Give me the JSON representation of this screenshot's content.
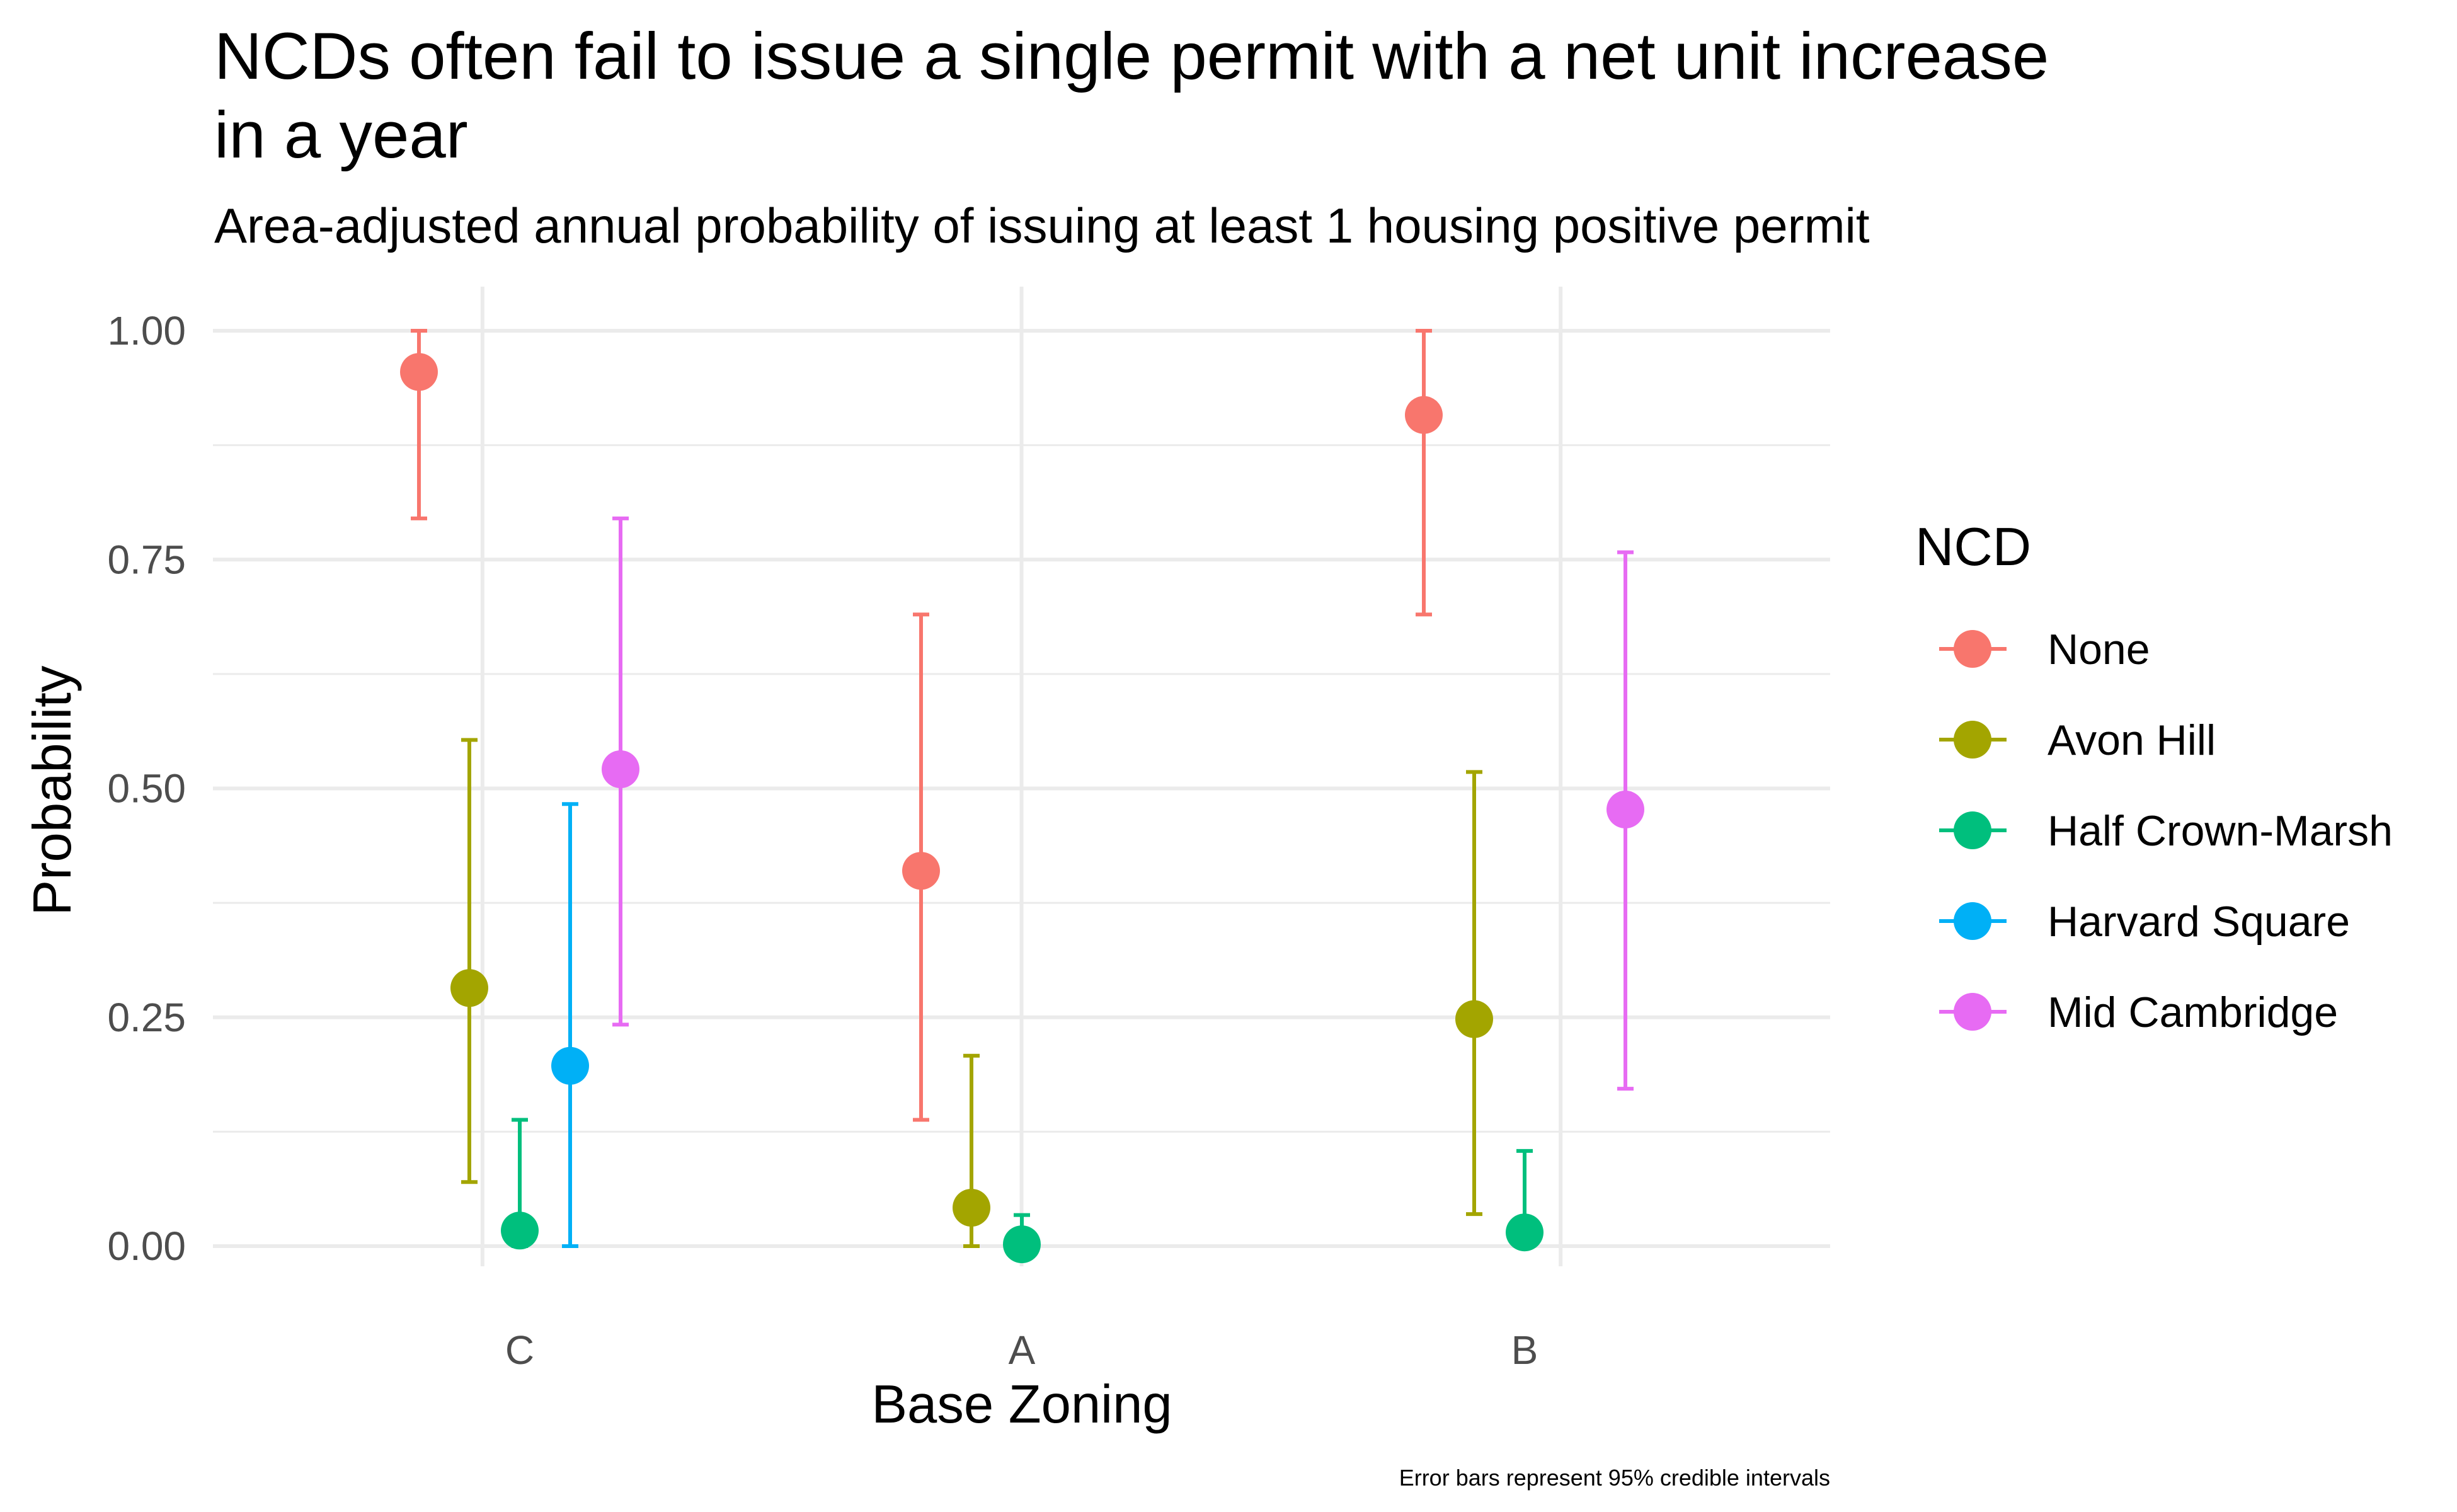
{
  "chart_data": {
    "type": "scatter",
    "title_lines": [
      "NCDs often fail to issue a single permit with a net unit increase",
      "in a year"
    ],
    "subtitle": "Area-adjusted annual probability of issuing at least 1 housing positive permit",
    "xlabel": "Base Zoning",
    "ylabel": "Probability",
    "caption": "Error bars represent 95% credible intervals",
    "categories": [
      "C",
      "A",
      "B"
    ],
    "y_ticks": [
      "0.00",
      "0.25",
      "0.50",
      "0.75",
      "1.00"
    ],
    "ylim": [
      0,
      1
    ],
    "grid": true,
    "legend_title": "NCD",
    "legend_position": "right",
    "series": [
      {
        "name": "None",
        "color": "#F8766D",
        "offset": -0.2,
        "points": [
          {
            "category": "C",
            "value": 0.955,
            "lower": 0.795,
            "upper": 1.0
          },
          {
            "category": "A",
            "value": 0.41,
            "lower": 0.138,
            "upper": 0.69
          },
          {
            "category": "B",
            "value": 0.908,
            "lower": 0.69,
            "upper": 1.0
          }
        ]
      },
      {
        "name": "Avon Hill",
        "color": "#A3A500",
        "offset": -0.1,
        "points": [
          {
            "category": "C",
            "value": 0.282,
            "lower": 0.07,
            "upper": 0.553
          },
          {
            "category": "A",
            "value": 0.042,
            "lower": 0.0,
            "upper": 0.208
          },
          {
            "category": "B",
            "value": 0.248,
            "lower": 0.035,
            "upper": 0.518
          }
        ]
      },
      {
        "name": "Half Crown-Marsh",
        "color": "#00BF7D",
        "offset": 0.0,
        "points": [
          {
            "category": "C",
            "value": 0.017,
            "lower": 0.0,
            "upper": 0.138
          },
          {
            "category": "A",
            "value": 0.002,
            "lower": 0.0,
            "upper": 0.034
          },
          {
            "category": "B",
            "value": 0.015,
            "lower": 0.0,
            "upper": 0.104
          }
        ]
      },
      {
        "name": "Harvard Square",
        "color": "#00B0F6",
        "offset": 0.1,
        "points": [
          {
            "category": "C",
            "value": 0.197,
            "lower": 0.0,
            "upper": 0.483
          }
        ]
      },
      {
        "name": "Mid Cambridge",
        "color": "#E76BF3",
        "offset": 0.2,
        "points": [
          {
            "category": "C",
            "value": 0.521,
            "lower": 0.242,
            "upper": 0.795
          },
          {
            "category": "B",
            "value": 0.477,
            "lower": 0.172,
            "upper": 0.758
          }
        ]
      }
    ]
  }
}
